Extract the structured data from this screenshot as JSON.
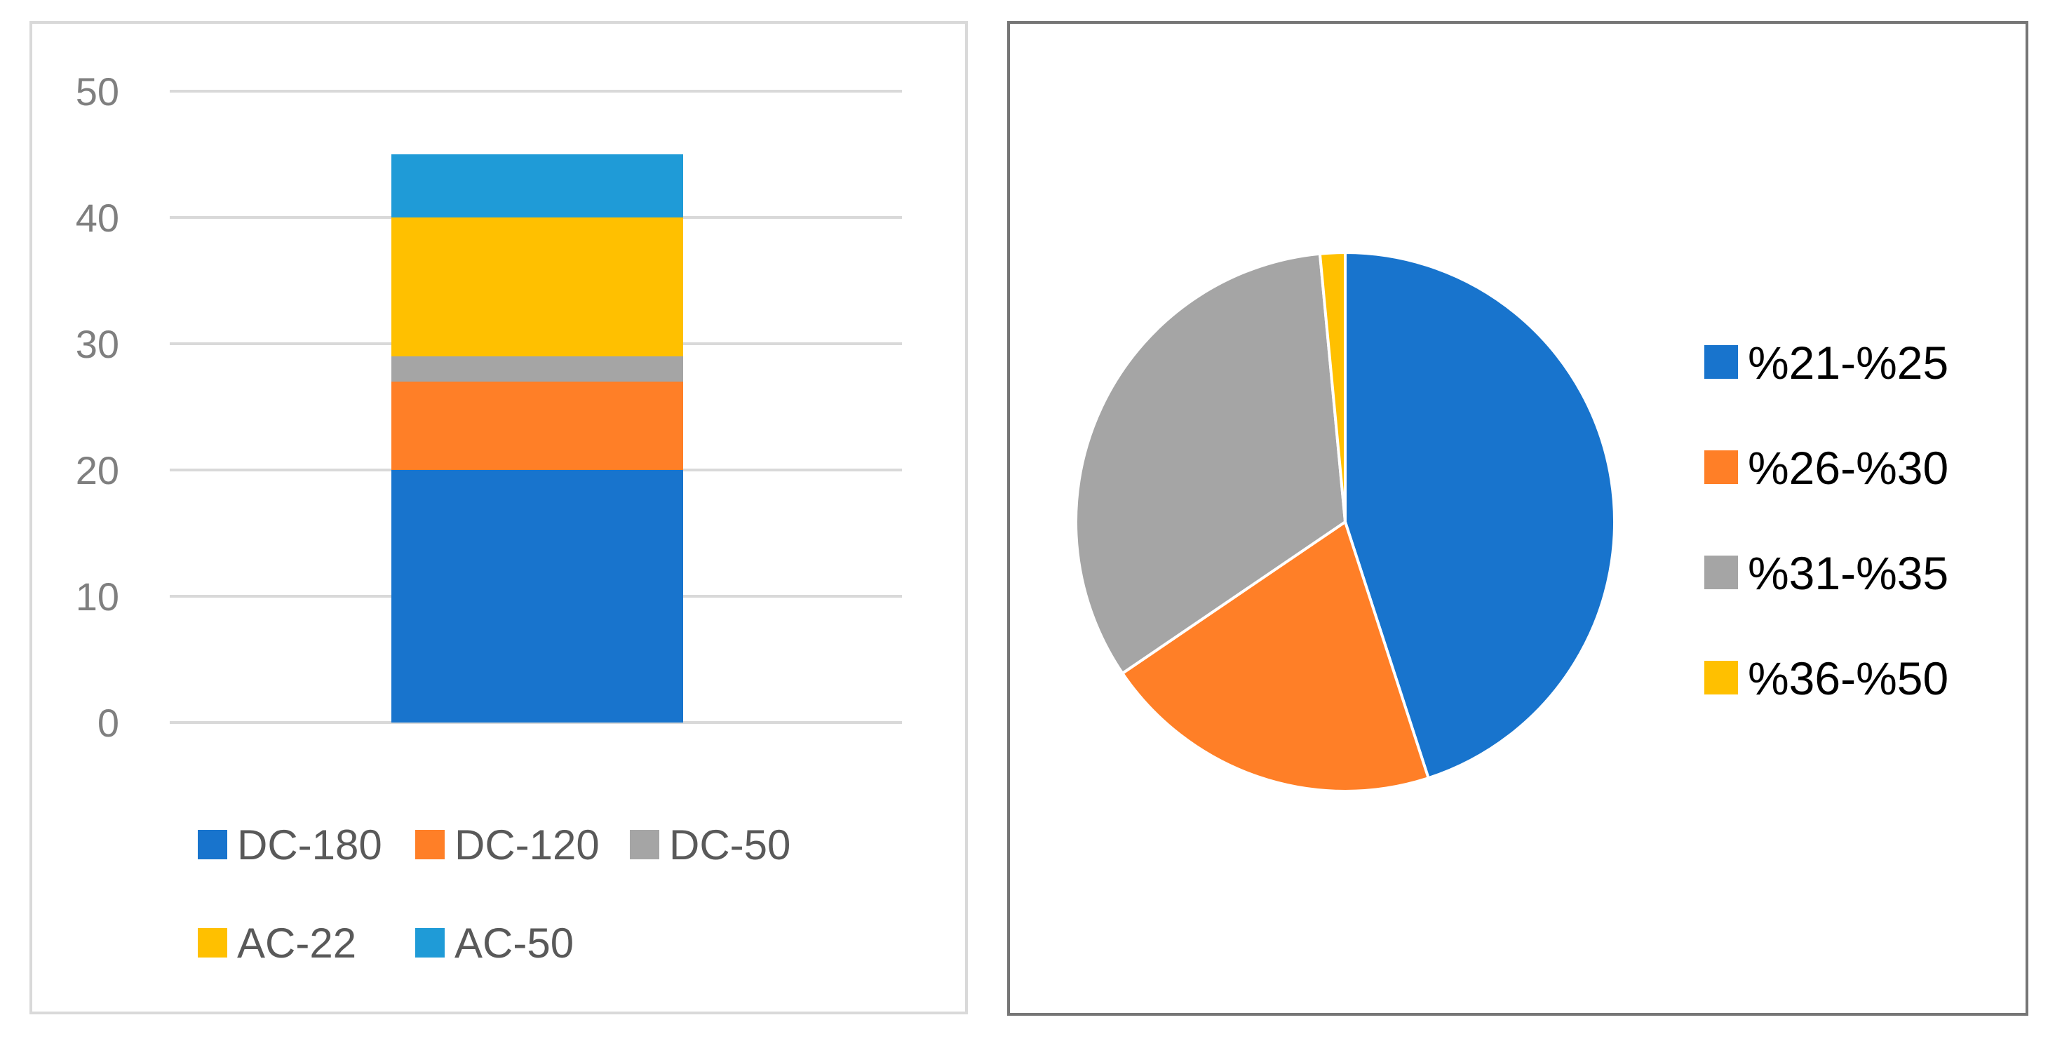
{
  "chart_data": [
    {
      "type": "bar",
      "stacked": true,
      "categories": [
        ""
      ],
      "series": [
        {
          "name": "DC-180",
          "values": [
            20
          ],
          "color": "#1874CD"
        },
        {
          "name": "DC-120",
          "values": [
            7
          ],
          "color": "#FF7F27"
        },
        {
          "name": "DC-50",
          "values": [
            2
          ],
          "color": "#A5A5A5"
        },
        {
          "name": "AC-22",
          "values": [
            11
          ],
          "color": "#FFC000"
        },
        {
          "name": "AC-50",
          "values": [
            5
          ],
          "color": "#1F9BD7"
        }
      ],
      "yticks": [
        "0",
        "10",
        "20",
        "30",
        "40",
        "50"
      ],
      "ylim": [
        0,
        50
      ],
      "grid": true,
      "legend": "bottom"
    },
    {
      "type": "pie",
      "labels": [
        "%21-%25",
        "%26-%30",
        "%31-%35",
        "%36-%50"
      ],
      "values": [
        45,
        20.5,
        33,
        1.5
      ],
      "colors": [
        "#1874CD",
        "#FF7F27",
        "#A5A5A5",
        "#FFC000"
      ],
      "legend": "right"
    }
  ]
}
